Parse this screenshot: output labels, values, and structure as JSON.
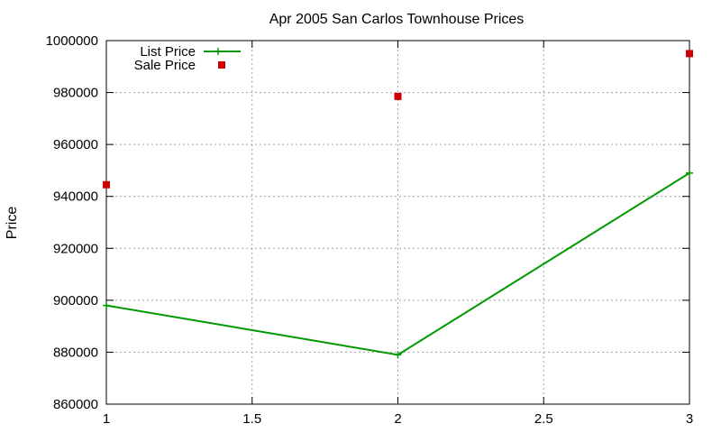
{
  "chart_data": {
    "type": "line",
    "title": "Apr 2005 San Carlos Townhouse Prices",
    "xlabel": "",
    "ylabel": "Price",
    "xlim": [
      1,
      3
    ],
    "ylim": [
      860000,
      1000000
    ],
    "xticks": [
      1,
      1.5,
      2,
      2.5,
      3
    ],
    "xtick_labels": [
      "1",
      "1.5",
      "2",
      "2.5",
      "3"
    ],
    "yticks": [
      860000,
      880000,
      900000,
      920000,
      940000,
      960000,
      980000,
      1000000
    ],
    "ytick_labels": [
      "860000",
      "880000",
      "900000",
      "920000",
      "940000",
      "960000",
      "980000",
      "1000000"
    ],
    "grid": true,
    "legend_position": "top-left",
    "series": [
      {
        "name": "List Price",
        "style": "line+cross",
        "color": "#009900",
        "x": [
          1,
          2,
          3
        ],
        "y": [
          898000,
          879000,
          949000
        ]
      },
      {
        "name": "Sale Price",
        "style": "squares",
        "color": "#cc0000",
        "x": [
          1,
          2,
          3
        ],
        "y": [
          944500,
          978500,
          995000
        ]
      }
    ]
  }
}
